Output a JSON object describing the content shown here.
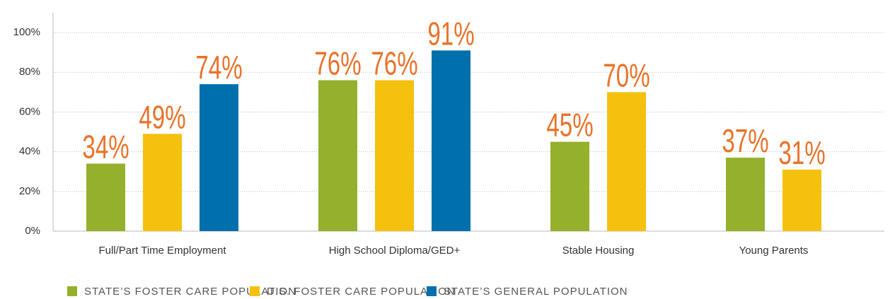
{
  "chart_data": {
    "type": "bar",
    "categories": [
      "Full/Part Time Employment",
      "High School Diploma/GED+",
      "Stable Housing",
      "Young Parents"
    ],
    "series": [
      {
        "name": "STATE’S FOSTER CARE POPULATION",
        "color": "#94b02c",
        "values": [
          34,
          76,
          45,
          37
        ],
        "value_labels": [
          "34%",
          "76%",
          "45%",
          "37%"
        ]
      },
      {
        "name": "U.S. FOSTER CARE POPULATION",
        "color": "#f5c10f",
        "values": [
          49,
          76,
          70,
          31
        ],
        "value_labels": [
          "49%",
          "76%",
          "70%",
          "31%"
        ]
      },
      {
        "name": "STATE’S GENERAL POPULATION",
        "color": "#0070ac",
        "values": [
          74,
          91,
          null,
          null
        ],
        "value_labels": [
          "74%",
          "91%",
          null,
          null
        ]
      }
    ],
    "ylim": [
      0,
      110
    ],
    "yticks": [
      {
        "value": 0,
        "label": "0%"
      },
      {
        "value": 20,
        "label": "20%"
      },
      {
        "value": 40,
        "label": "40%"
      },
      {
        "value": 60,
        "label": "60%"
      },
      {
        "value": 80,
        "label": "80%"
      },
      {
        "value": 100,
        "label": "100%"
      }
    ],
    "grid": true
  }
}
